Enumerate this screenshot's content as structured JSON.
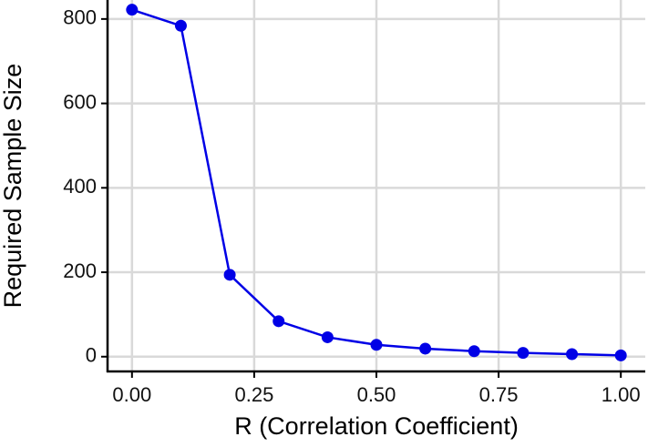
{
  "chart_data": {
    "type": "line",
    "xlabel": "R (Correlation Coefficient)",
    "ylabel": "Required Sample Size",
    "x": [
      0,
      0.1,
      0.2,
      0.3,
      0.4,
      0.5,
      0.6,
      0.7,
      0.8,
      0.9,
      1.0
    ],
    "series": [
      {
        "name": "Required Sample Size",
        "color": "#0000e6",
        "values": [
          822,
          784,
          194,
          84,
          46,
          28,
          19,
          13,
          9,
          6,
          3
        ]
      }
    ],
    "xlim": [
      -0.05,
      1.05
    ],
    "ylim": [
      -35,
      845
    ],
    "xticks": [
      {
        "value": 0,
        "label": "0.00"
      },
      {
        "value": 0.25,
        "label": "0.25"
      },
      {
        "value": 0.5,
        "label": "0.50"
      },
      {
        "value": 0.75,
        "label": "0.75"
      },
      {
        "value": 1,
        "label": "1.00"
      }
    ],
    "yticks": [
      0,
      200,
      400,
      600,
      800
    ],
    "grid": true
  }
}
